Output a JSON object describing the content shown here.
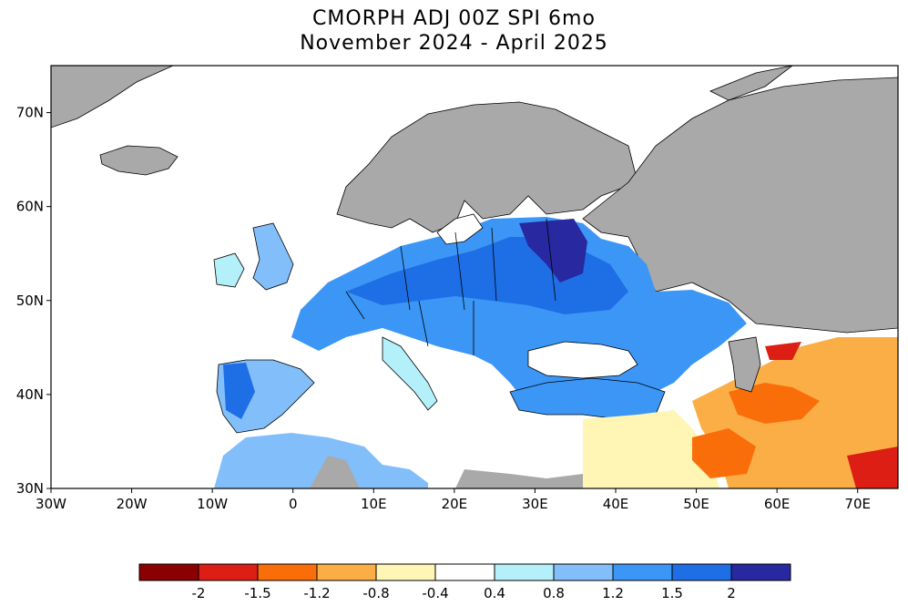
{
  "title": "CMORPH ADJ 00Z SPI 6mo",
  "subtitle": "November 2024 - April 2025",
  "map": {
    "lon_range": [
      -30,
      75
    ],
    "lat_range": [
      30,
      75
    ],
    "lat_ticks": [
      "30N",
      "40N",
      "50N",
      "60N",
      "70N"
    ],
    "lon_ticks": [
      "30W",
      "20W",
      "10W",
      "0",
      "10E",
      "20E",
      "30E",
      "40E",
      "50E",
      "60E",
      "70E"
    ]
  },
  "legend": {
    "colors": [
      "#8b0000",
      "#dc1e14",
      "#fa6e0a",
      "#fbae46",
      "#fff5b4",
      "#ffffff",
      "#b4f0fa",
      "#82befa",
      "#3c96f5",
      "#1e6ee6",
      "#2828a0"
    ],
    "labels": [
      "-2",
      "-1.5",
      "-1.2",
      "-0.8",
      "-0.4",
      "0.4",
      "0.8",
      "1.2",
      "1.5",
      "2"
    ]
  },
  "colors": {
    "no_data": "#a9a9a9",
    "coast": "#000000"
  }
}
